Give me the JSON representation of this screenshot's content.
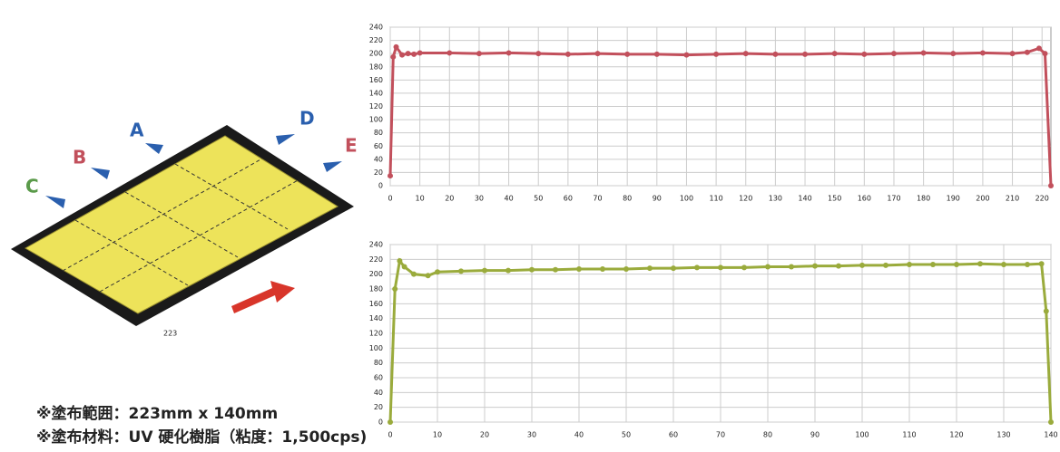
{
  "chart_data": [
    {
      "type": "line",
      "xlim": [
        0,
        223
      ],
      "xticks": [
        0,
        10,
        20,
        30,
        40,
        50,
        60,
        70,
        80,
        90,
        100,
        110,
        120,
        130,
        140,
        150,
        160,
        170,
        180,
        190,
        200,
        210,
        220
      ],
      "ylim": [
        0,
        240
      ],
      "yticks": [
        0,
        20,
        40,
        60,
        80,
        100,
        120,
        140,
        160,
        180,
        200,
        220,
        240
      ],
      "grid": true,
      "x": [
        0,
        1,
        2,
        4,
        6,
        8,
        10,
        20,
        30,
        40,
        50,
        60,
        70,
        80,
        90,
        100,
        110,
        120,
        130,
        140,
        150,
        160,
        170,
        180,
        190,
        200,
        210,
        215,
        219,
        221,
        223
      ],
      "series": [
        {
          "color": "#c2505c",
          "values": [
            15,
            195,
            210,
            198,
            200,
            199,
            201,
            201,
            200,
            201,
            200,
            199,
            200,
            199,
            199,
            198,
            199,
            200,
            199,
            199,
            200,
            199,
            200,
            201,
            200,
            201,
            200,
            202,
            208,
            200,
            0
          ]
        }
      ]
    },
    {
      "type": "line",
      "xlim": [
        0,
        140
      ],
      "xticks": [
        0,
        10,
        20,
        30,
        40,
        50,
        60,
        70,
        80,
        90,
        100,
        110,
        120,
        130,
        140
      ],
      "ylim": [
        0,
        240
      ],
      "yticks": [
        0,
        20,
        40,
        60,
        80,
        100,
        120,
        140,
        160,
        180,
        200,
        220,
        240
      ],
      "grid": true,
      "x": [
        0,
        1,
        2,
        3,
        5,
        8,
        10,
        15,
        20,
        25,
        30,
        35,
        40,
        45,
        50,
        55,
        60,
        65,
        70,
        75,
        80,
        85,
        90,
        95,
        100,
        105,
        110,
        115,
        120,
        125,
        130,
        135,
        138,
        139,
        140
      ],
      "series": [
        {
          "color": "#9aab3c",
          "values": [
            0,
            180,
            218,
            210,
            200,
            198,
            203,
            204,
            205,
            205,
            206,
            206,
            207,
            207,
            207,
            208,
            208,
            209,
            209,
            209,
            210,
            210,
            211,
            211,
            212,
            212,
            213,
            213,
            213,
            214,
            213,
            213,
            214,
            150,
            0
          ]
        }
      ]
    }
  ],
  "diagram": {
    "labels": [
      "A",
      "B",
      "C",
      "D",
      "E"
    ],
    "length": "223"
  },
  "notes": [
    "※塗布範囲：223mm x 140mm",
    "※塗布材料：UV 硬化樹脂（粘度：1,500cps)"
  ]
}
